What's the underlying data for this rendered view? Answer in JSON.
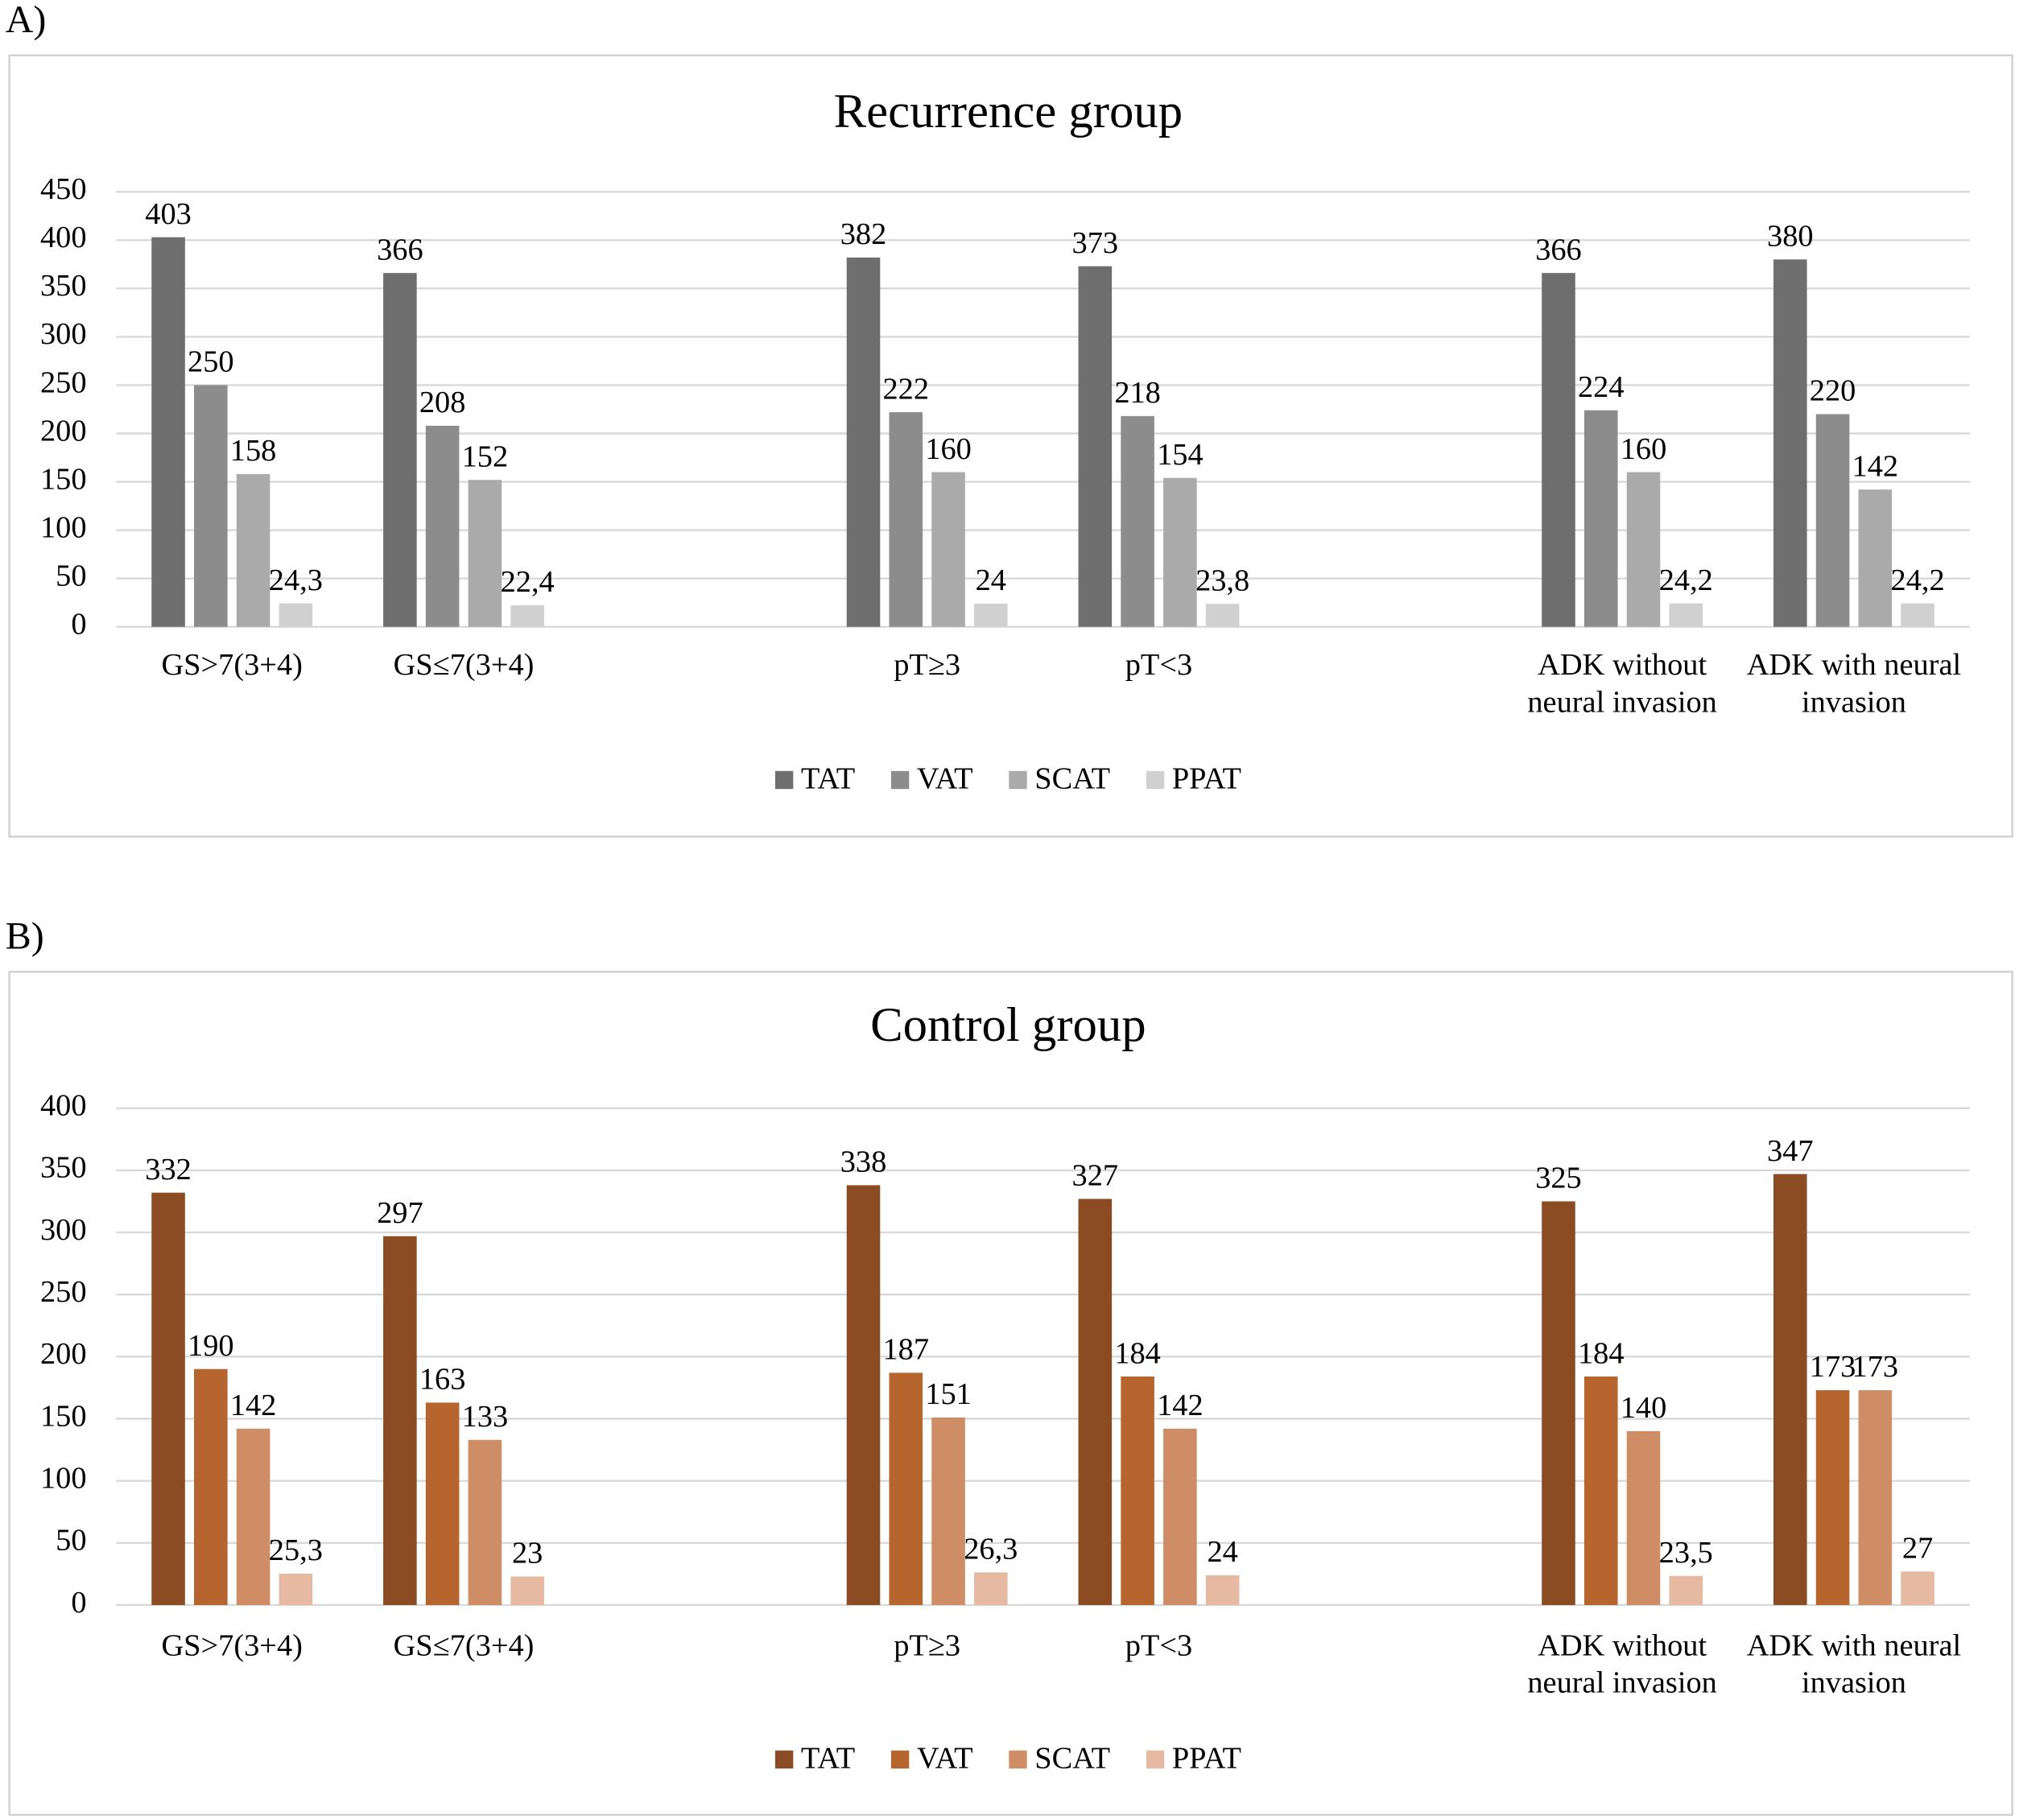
{
  "chart_data": [
    {
      "type": "bar",
      "panel_label": "A)",
      "title": "Recurrence group",
      "categories": [
        "GS>7(3+4)",
        "GS≤7(3+4)",
        null,
        "pT≥3",
        "pT<3",
        null,
        "ADK without neural invasion",
        "ADK with neural invasion"
      ],
      "series": [
        {
          "name": "TAT",
          "color": "#6e6e6e",
          "values": [
            403,
            366,
            null,
            382,
            373,
            null,
            366,
            380
          ]
        },
        {
          "name": "VAT",
          "color": "#8c8c8c",
          "values": [
            250,
            208,
            null,
            222,
            218,
            null,
            224,
            220
          ]
        },
        {
          "name": "SCAT",
          "color": "#aaaaaa",
          "values": [
            158,
            152,
            null,
            160,
            154,
            null,
            160,
            142
          ]
        },
        {
          "name": "PPAT",
          "color": "#d0d0d0",
          "values": [
            24.3,
            22.4,
            null,
            24,
            23.8,
            null,
            24.2,
            24.2
          ],
          "value_labels": [
            "24,3",
            "22,4",
            null,
            "24",
            "23,8",
            null,
            "24,2",
            "24,2"
          ]
        }
      ],
      "ylim": [
        0,
        450
      ],
      "yticks": [
        0,
        50,
        100,
        150,
        200,
        250,
        300,
        350,
        400,
        450
      ],
      "grid": true,
      "legend": "bottom"
    },
    {
      "type": "bar",
      "panel_label": "B)",
      "title": "Control group",
      "categories": [
        "GS>7(3+4)",
        "GS≤7(3+4)",
        null,
        "pT≥3",
        "pT<3",
        null,
        "ADK without neural invasion",
        "ADK with neural invasion"
      ],
      "series": [
        {
          "name": "TAT",
          "color": "#8b4c24",
          "values": [
            332,
            297,
            null,
            338,
            327,
            null,
            325,
            347
          ]
        },
        {
          "name": "VAT",
          "color": "#b5652d",
          "values": [
            190,
            163,
            null,
            187,
            184,
            null,
            184,
            173
          ]
        },
        {
          "name": "SCAT",
          "color": "#cf8d65",
          "values": [
            142,
            133,
            null,
            151,
            142,
            null,
            140,
            173
          ]
        },
        {
          "name": "PPAT",
          "color": "#e6b9a2",
          "values": [
            25.3,
            23,
            null,
            26.3,
            24,
            null,
            23.5,
            27
          ],
          "value_labels": [
            "25,3",
            "23",
            null,
            "26,3",
            "24",
            null,
            "23,5",
            "27"
          ]
        }
      ],
      "ylim": [
        0,
        400
      ],
      "yticks": [
        0,
        50,
        100,
        150,
        200,
        250,
        300,
        350,
        400
      ],
      "grid": true,
      "legend": "bottom"
    }
  ]
}
